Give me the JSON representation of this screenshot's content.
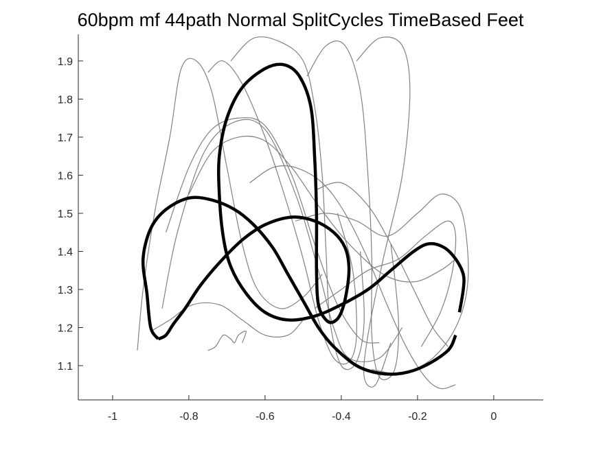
{
  "chart_data": {
    "type": "line",
    "title": "60bpm mf 44path Normal SplitCycles TimeBased Feet",
    "xlabel": "",
    "ylabel": "",
    "xlim": [
      -1.09,
      0.13
    ],
    "ylim": [
      1.01,
      1.97
    ],
    "grid": false,
    "xticks": [
      -1,
      -0.8,
      -0.6,
      -0.4,
      -0.2,
      0
    ],
    "xtick_labels": [
      "-1",
      "-0.8",
      "-0.6",
      "-0.4",
      "-0.2",
      "0"
    ],
    "yticks": [
      1.1,
      1.2,
      1.3,
      1.4,
      1.5,
      1.6,
      1.7,
      1.8,
      1.9
    ],
    "ytick_labels": [
      "1.1",
      "1.2",
      "1.3",
      "1.4",
      "1.5",
      "1.6",
      "1.7",
      "1.8",
      "1.9"
    ],
    "colors": {
      "mean": "#000000",
      "trials": "#808080",
      "axes": "#262626"
    },
    "series": [
      {
        "role": "trial",
        "points": [
          [
            -0.935,
            1.14
          ],
          [
            -0.92,
            1.3
          ],
          [
            -0.89,
            1.5
          ],
          [
            -0.85,
            1.7
          ],
          [
            -0.82,
            1.88
          ],
          [
            -0.78,
            1.9
          ],
          [
            -0.74,
            1.82
          ],
          [
            -0.7,
            1.62
          ],
          [
            -0.66,
            1.42
          ],
          [
            -0.62,
            1.3
          ],
          [
            -0.56,
            1.25
          ],
          [
            -0.5,
            1.28
          ],
          [
            -0.45,
            1.34
          ]
        ]
      },
      {
        "role": "trial",
        "points": [
          [
            -0.75,
            1.87
          ],
          [
            -0.71,
            1.9
          ],
          [
            -0.66,
            1.84
          ],
          [
            -0.6,
            1.7
          ],
          [
            -0.55,
            1.55
          ],
          [
            -0.5,
            1.38
          ],
          [
            -0.46,
            1.22
          ],
          [
            -0.42,
            1.12
          ],
          [
            -0.38,
            1.11
          ],
          [
            -0.36,
            1.18
          ],
          [
            -0.37,
            1.35
          ],
          [
            -0.41,
            1.5
          ]
        ]
      },
      {
        "role": "trial",
        "points": [
          [
            -0.69,
            1.9
          ],
          [
            -0.63,
            1.96
          ],
          [
            -0.56,
            1.95
          ],
          [
            -0.5,
            1.9
          ],
          [
            -0.47,
            1.78
          ],
          [
            -0.45,
            1.6
          ],
          [
            -0.44,
            1.4
          ],
          [
            -0.43,
            1.22
          ],
          [
            -0.4,
            1.1
          ],
          [
            -0.36,
            1.11
          ],
          [
            -0.34,
            1.22
          ],
          [
            -0.35,
            1.4
          ]
        ]
      },
      {
        "role": "trial",
        "points": [
          [
            -0.49,
            1.86
          ],
          [
            -0.44,
            1.94
          ],
          [
            -0.39,
            1.94
          ],
          [
            -0.35,
            1.82
          ],
          [
            -0.33,
            1.6
          ],
          [
            -0.32,
            1.38
          ],
          [
            -0.32,
            1.18
          ],
          [
            -0.3,
            1.07
          ],
          [
            -0.26,
            1.09
          ],
          [
            -0.25,
            1.22
          ],
          [
            -0.27,
            1.42
          ]
        ]
      },
      {
        "role": "trial",
        "points": [
          [
            -0.36,
            1.9
          ],
          [
            -0.3,
            1.96
          ],
          [
            -0.24,
            1.94
          ],
          [
            -0.22,
            1.82
          ],
          [
            -0.24,
            1.6
          ],
          [
            -0.29,
            1.38
          ],
          [
            -0.33,
            1.18
          ],
          [
            -0.34,
            1.07
          ],
          [
            -0.31,
            1.05
          ],
          [
            -0.27,
            1.16
          ]
        ]
      },
      {
        "role": "trial",
        "points": [
          [
            -0.86,
            1.45
          ],
          [
            -0.8,
            1.62
          ],
          [
            -0.74,
            1.72
          ],
          [
            -0.67,
            1.75
          ],
          [
            -0.6,
            1.73
          ],
          [
            -0.53,
            1.6
          ],
          [
            -0.47,
            1.42
          ],
          [
            -0.41,
            1.26
          ],
          [
            -0.35,
            1.17
          ],
          [
            -0.3,
            1.16
          ]
        ]
      },
      {
        "role": "trial",
        "points": [
          [
            -0.87,
            1.25
          ],
          [
            -0.83,
            1.45
          ],
          [
            -0.76,
            1.66
          ],
          [
            -0.68,
            1.74
          ],
          [
            -0.6,
            1.72
          ],
          [
            -0.52,
            1.55
          ],
          [
            -0.46,
            1.35
          ],
          [
            -0.42,
            1.2
          ],
          [
            -0.38,
            1.12
          ],
          [
            -0.3,
            1.12
          ],
          [
            -0.24,
            1.2
          ]
        ]
      },
      {
        "role": "trial",
        "points": [
          [
            -0.8,
            1.55
          ],
          [
            -0.74,
            1.66
          ],
          [
            -0.67,
            1.7
          ],
          [
            -0.6,
            1.69
          ],
          [
            -0.53,
            1.62
          ],
          [
            -0.46,
            1.52
          ],
          [
            -0.38,
            1.42
          ],
          [
            -0.29,
            1.34
          ],
          [
            -0.21,
            1.32
          ],
          [
            -0.14,
            1.35
          ],
          [
            -0.1,
            1.38
          ]
        ]
      },
      {
        "role": "trial",
        "points": [
          [
            -0.64,
            1.58
          ],
          [
            -0.58,
            1.62
          ],
          [
            -0.52,
            1.62
          ],
          [
            -0.45,
            1.58
          ],
          [
            -0.39,
            1.5
          ],
          [
            -0.33,
            1.38
          ],
          [
            -0.28,
            1.26
          ],
          [
            -0.23,
            1.15
          ],
          [
            -0.18,
            1.07
          ],
          [
            -0.14,
            1.04
          ],
          [
            -0.1,
            1.05
          ]
        ]
      },
      {
        "role": "trial",
        "points": [
          [
            -0.47,
            1.56
          ],
          [
            -0.4,
            1.58
          ],
          [
            -0.33,
            1.52
          ],
          [
            -0.27,
            1.42
          ],
          [
            -0.21,
            1.3
          ],
          [
            -0.16,
            1.2
          ],
          [
            -0.12,
            1.15
          ]
        ]
      },
      {
        "role": "trial",
        "points": [
          [
            -0.52,
            1.48
          ],
          [
            -0.44,
            1.5
          ],
          [
            -0.36,
            1.48
          ],
          [
            -0.28,
            1.44
          ],
          [
            -0.2,
            1.5
          ],
          [
            -0.14,
            1.55
          ],
          [
            -0.09,
            1.52
          ],
          [
            -0.07,
            1.42
          ],
          [
            -0.07,
            1.3
          ],
          [
            -0.1,
            1.2
          ],
          [
            -0.16,
            1.12
          ],
          [
            -0.24,
            1.08
          ],
          [
            -0.32,
            1.09
          ]
        ]
      },
      {
        "role": "trial",
        "points": [
          [
            -0.47,
            1.25
          ],
          [
            -0.4,
            1.3
          ],
          [
            -0.33,
            1.35
          ],
          [
            -0.25,
            1.38
          ],
          [
            -0.18,
            1.44
          ],
          [
            -0.12,
            1.48
          ],
          [
            -0.1,
            1.44
          ],
          [
            -0.11,
            1.34
          ],
          [
            -0.14,
            1.24
          ],
          [
            -0.19,
            1.15
          ]
        ]
      },
      {
        "role": "trial",
        "points": [
          [
            -0.9,
            1.19
          ],
          [
            -0.85,
            1.22
          ],
          [
            -0.79,
            1.26
          ],
          [
            -0.72,
            1.26
          ],
          [
            -0.66,
            1.22
          ],
          [
            -0.6,
            1.18
          ],
          [
            -0.54,
            1.18
          ],
          [
            -0.5,
            1.22
          ]
        ]
      },
      {
        "role": "trial",
        "points": [
          [
            -0.75,
            1.14
          ],
          [
            -0.73,
            1.15
          ],
          [
            -0.71,
            1.18
          ],
          [
            -0.69,
            1.17
          ],
          [
            -0.68,
            1.16
          ],
          [
            -0.67,
            1.18
          ],
          [
            -0.65,
            1.19
          ],
          [
            -0.66,
            1.16
          ]
        ]
      },
      {
        "role": "mean",
        "points": [
          [
            -0.88,
            1.17
          ],
          [
            -0.9,
            1.2
          ],
          [
            -0.91,
            1.29
          ],
          [
            -0.92,
            1.38
          ],
          [
            -0.9,
            1.46
          ],
          [
            -0.86,
            1.51
          ],
          [
            -0.8,
            1.54
          ],
          [
            -0.74,
            1.535
          ],
          [
            -0.68,
            1.51
          ],
          [
            -0.63,
            1.47
          ],
          [
            -0.58,
            1.41
          ],
          [
            -0.54,
            1.34
          ],
          [
            -0.5,
            1.27
          ],
          [
            -0.46,
            1.2
          ],
          [
            -0.42,
            1.15
          ],
          [
            -0.36,
            1.1
          ],
          [
            -0.3,
            1.08
          ],
          [
            -0.24,
            1.08
          ],
          [
            -0.18,
            1.1
          ],
          [
            -0.12,
            1.14
          ],
          [
            -0.1,
            1.18
          ]
        ]
      },
      {
        "role": "mean",
        "points": [
          [
            -0.09,
            1.24
          ],
          [
            -0.08,
            1.3
          ],
          [
            -0.08,
            1.34
          ],
          [
            -0.1,
            1.38
          ],
          [
            -0.13,
            1.41
          ],
          [
            -0.17,
            1.42
          ],
          [
            -0.21,
            1.4
          ],
          [
            -0.27,
            1.35
          ],
          [
            -0.33,
            1.3
          ],
          [
            -0.4,
            1.26
          ],
          [
            -0.47,
            1.23
          ],
          [
            -0.54,
            1.22
          ],
          [
            -0.6,
            1.24
          ],
          [
            -0.65,
            1.29
          ],
          [
            -0.69,
            1.36
          ],
          [
            -0.71,
            1.44
          ],
          [
            -0.72,
            1.55
          ],
          [
            -0.72,
            1.65
          ],
          [
            -0.7,
            1.75
          ],
          [
            -0.66,
            1.83
          ],
          [
            -0.6,
            1.88
          ],
          [
            -0.55,
            1.89
          ],
          [
            -0.51,
            1.86
          ],
          [
            -0.48,
            1.78
          ],
          [
            -0.47,
            1.65
          ],
          [
            -0.465,
            1.5
          ],
          [
            -0.465,
            1.35
          ],
          [
            -0.46,
            1.26
          ],
          [
            -0.44,
            1.22
          ],
          [
            -0.42,
            1.215
          ],
          [
            -0.4,
            1.24
          ],
          [
            -0.385,
            1.3
          ],
          [
            -0.38,
            1.36
          ],
          [
            -0.39,
            1.41
          ],
          [
            -0.42,
            1.45
          ],
          [
            -0.47,
            1.48
          ],
          [
            -0.53,
            1.49
          ],
          [
            -0.6,
            1.47
          ],
          [
            -0.66,
            1.43
          ],
          [
            -0.72,
            1.37
          ],
          [
            -0.77,
            1.31
          ],
          [
            -0.81,
            1.25
          ],
          [
            -0.84,
            1.21
          ],
          [
            -0.86,
            1.18
          ],
          [
            -0.88,
            1.17
          ]
        ]
      }
    ]
  }
}
